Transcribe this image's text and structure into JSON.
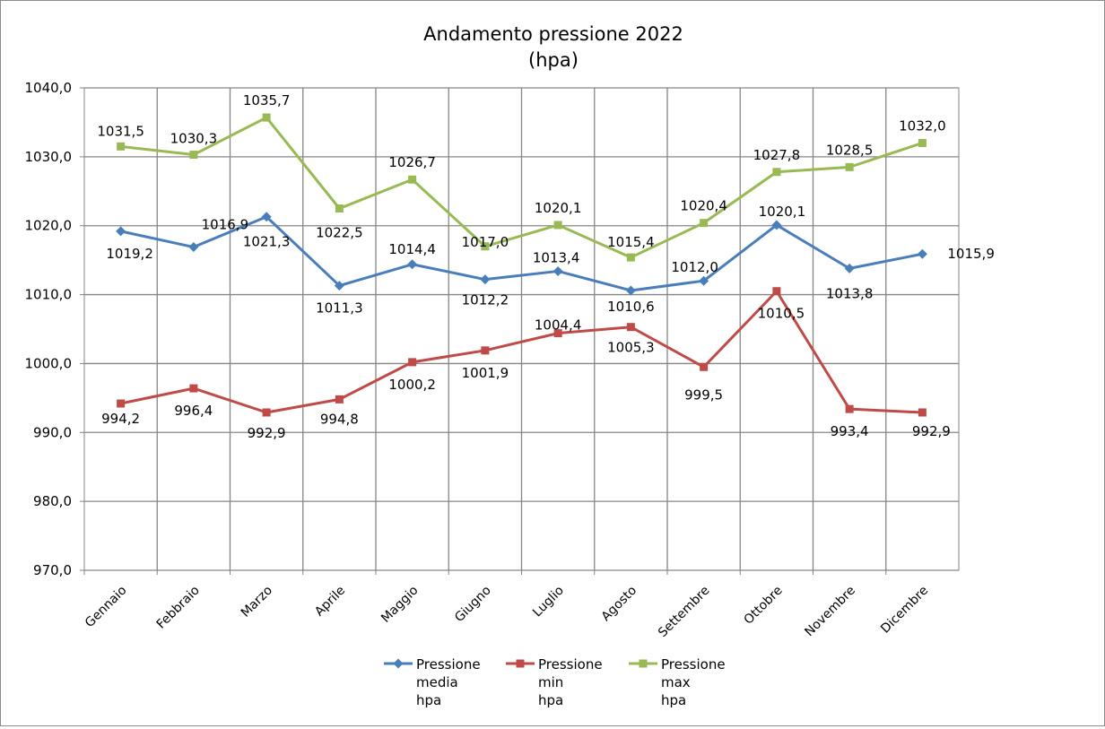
{
  "chart_data": {
    "type": "line",
    "title": [
      "Andamento pressione 2022",
      "(hpa)"
    ],
    "categories": [
      "Gennaio",
      "Febbraio",
      "Marzo",
      "Aprile",
      "Maggio",
      "Giugno",
      "Luglio",
      "Agosto",
      "Settembre",
      "Ottobre",
      "Novembre",
      "Dicembre"
    ],
    "ylim": [
      970,
      1040
    ],
    "yticks": [
      "970,0",
      "980,0",
      "990,0",
      "1000,0",
      "1010,0",
      "1020,0",
      "1030,0",
      "1040,0"
    ],
    "grid": true,
    "legend_position": "bottom",
    "series": [
      {
        "name": [
          "Pressione",
          "media",
          "hpa"
        ],
        "color": "#4a7ebb",
        "marker": "diamond",
        "values": [
          1019.2,
          1016.9,
          1021.3,
          1011.3,
          1014.4,
          1012.2,
          1013.4,
          1010.6,
          1012.0,
          1020.1,
          1013.8,
          1015.9
        ],
        "labels": [
          "1019,2",
          "1016,9",
          "1021,3",
          "1011,3",
          "1014,4",
          "1012,2",
          "1013,4",
          "1010,6",
          "1012,0",
          "1020,1",
          "1013,8",
          "1015,9"
        ]
      },
      {
        "name": [
          "Pressione",
          "min",
          "hpa"
        ],
        "color": "#be4b48",
        "marker": "square",
        "values": [
          994.2,
          996.4,
          992.9,
          994.8,
          1000.2,
          1001.9,
          1004.4,
          1005.3,
          999.5,
          1010.5,
          993.4,
          992.9
        ],
        "labels": [
          "994,2",
          "996,4",
          "992,9",
          "994,8",
          "1000,2",
          "1001,9",
          "1004,4",
          "1005,3",
          "999,5",
          "1010,5",
          "993,4",
          "992,9"
        ]
      },
      {
        "name": [
          "Pressione",
          "max",
          "hpa"
        ],
        "color": "#98b954",
        "marker": "square",
        "values": [
          1031.5,
          1030.3,
          1035.7,
          1022.5,
          1026.7,
          1017.0,
          1020.1,
          1015.4,
          1020.4,
          1027.8,
          1028.5,
          1032.0
        ],
        "labels": [
          "1031,5",
          "1030,3",
          "1035,7",
          "1022,5",
          "1026,7",
          "1017,0",
          "1020,1",
          "1015,4",
          "1020,4",
          "1027,8",
          "1028,5",
          "1032,0"
        ]
      }
    ]
  }
}
